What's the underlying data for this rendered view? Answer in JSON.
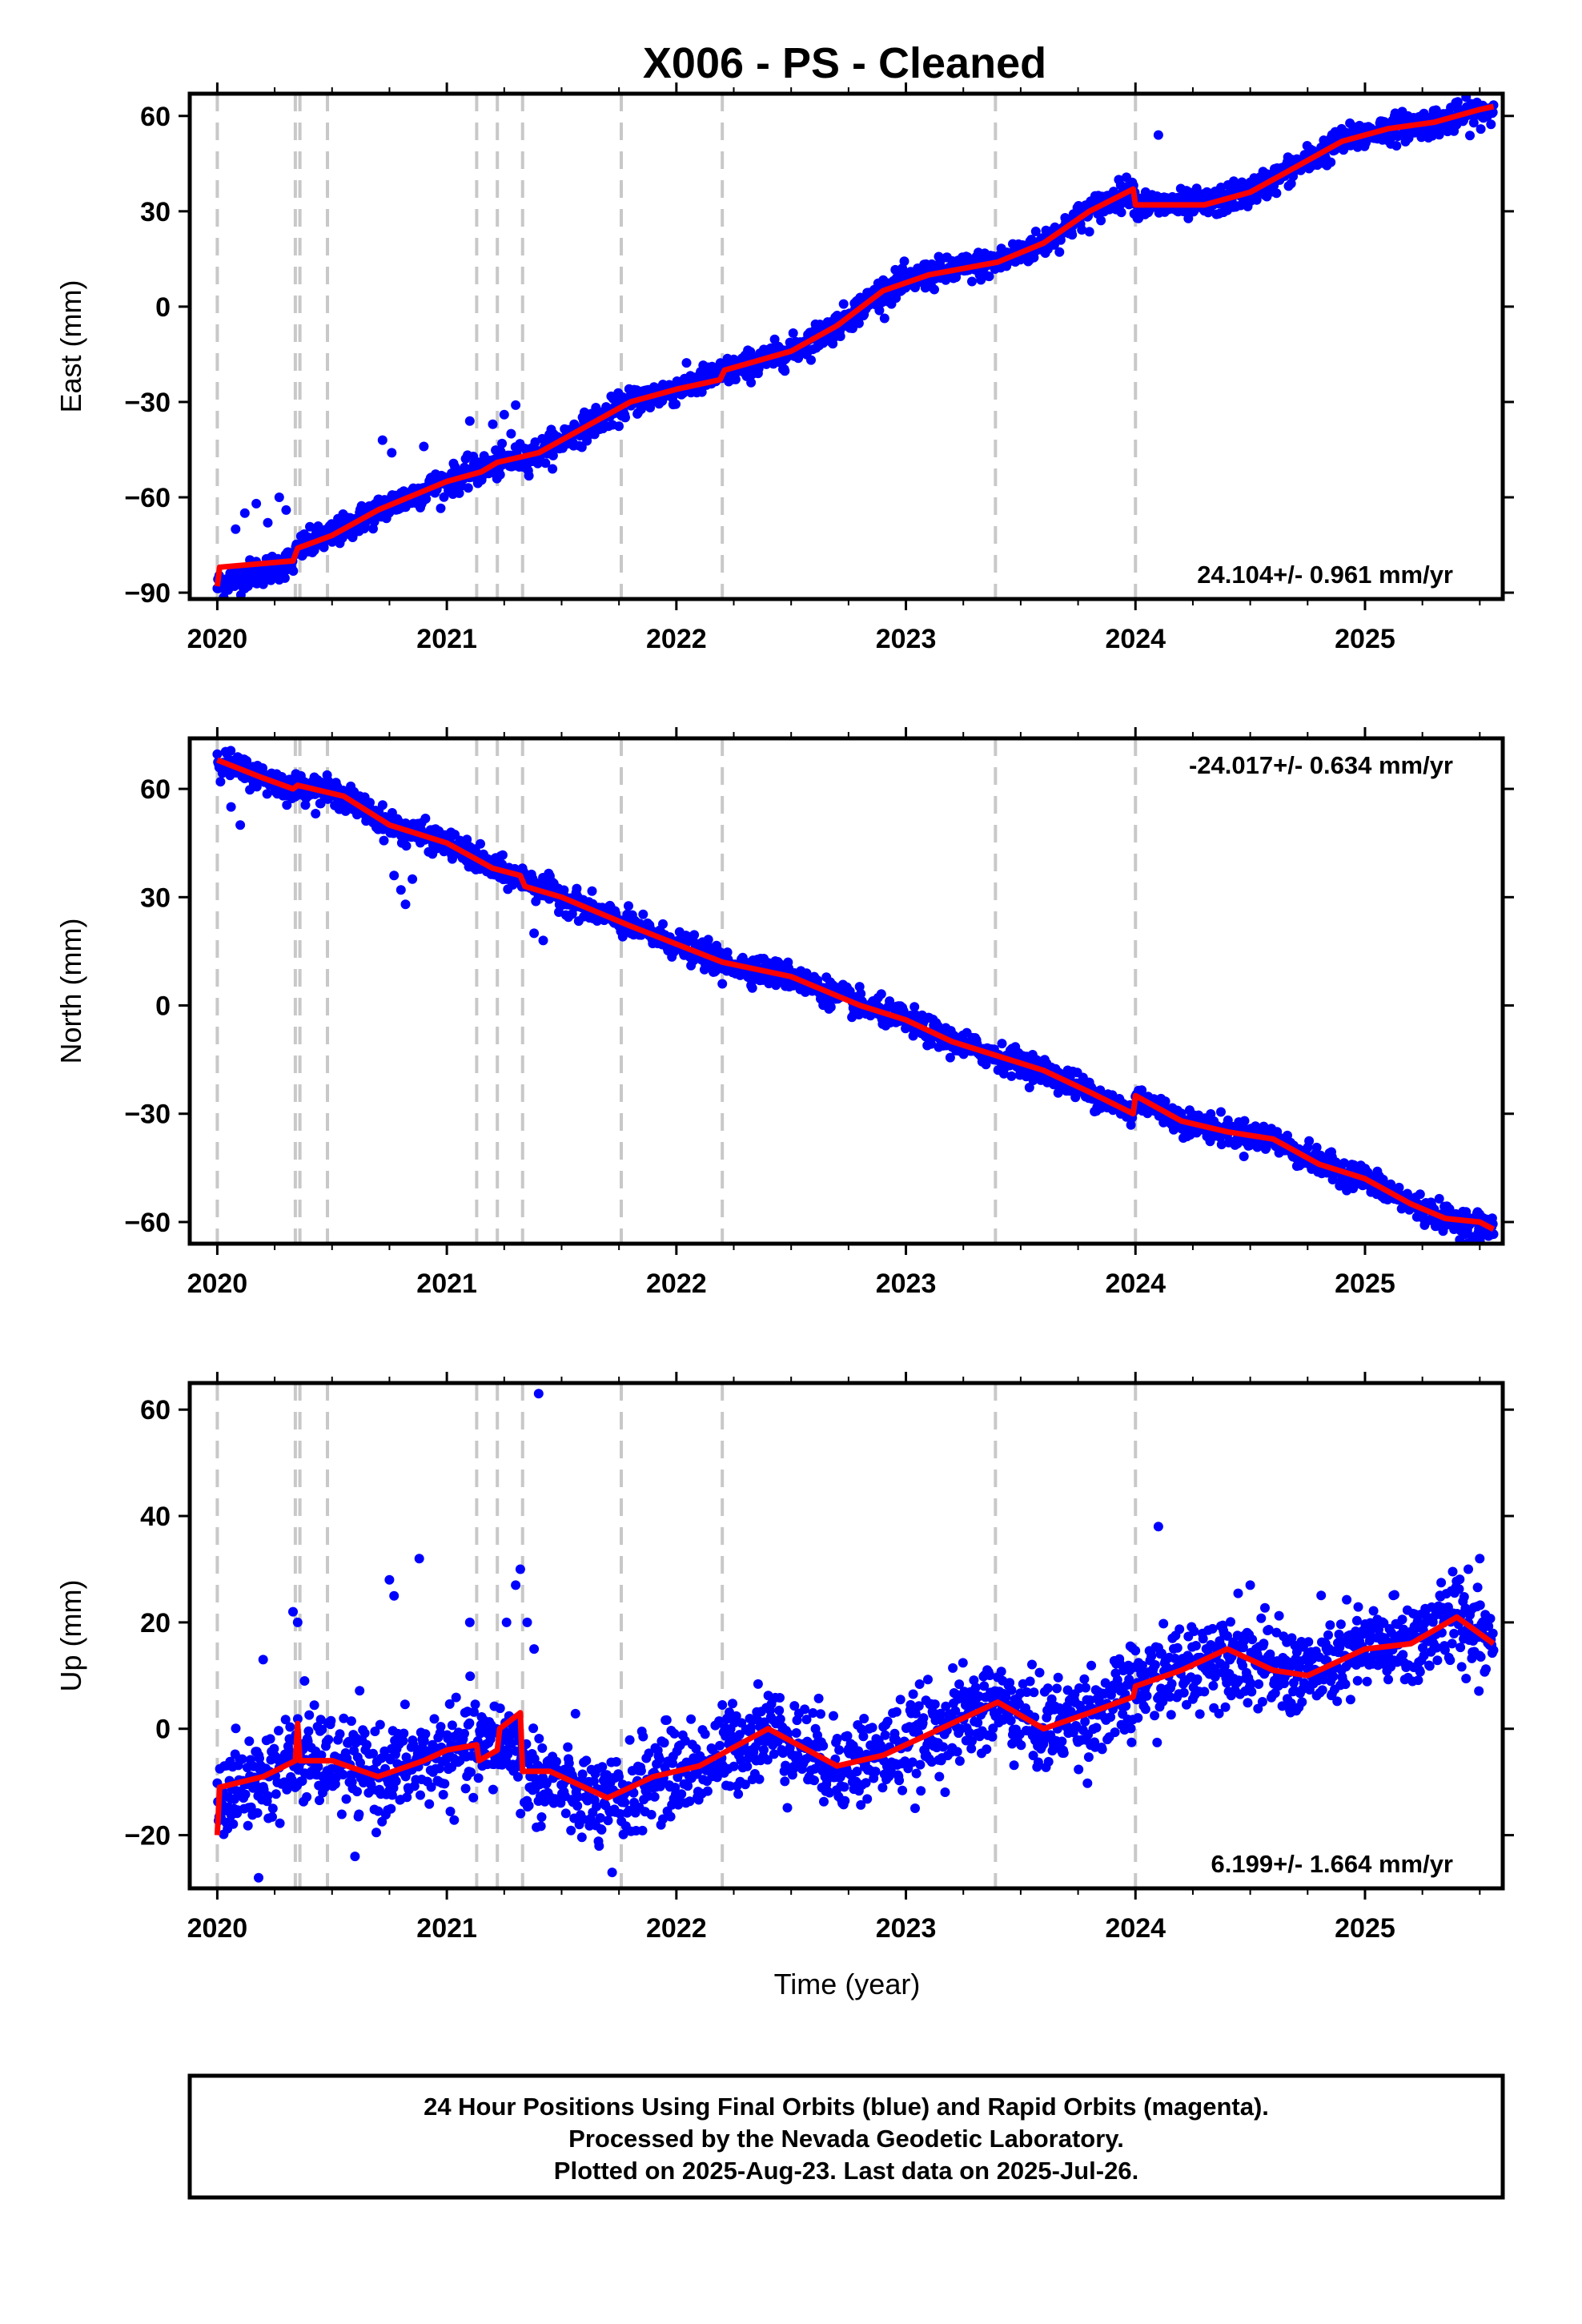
{
  "title": "X006  - PS - Cleaned",
  "xlabel": "Time (year)",
  "x_ticks": [
    "2020",
    "2021",
    "2022",
    "2023",
    "2024",
    "2025"
  ],
  "event_lines_year": [
    2020.0,
    2020.34,
    2020.36,
    2020.48,
    2021.13,
    2021.22,
    2021.33,
    2021.76,
    2022.2,
    2023.39,
    2024.0
  ],
  "colors": {
    "final_orbit_points": "#0000ff",
    "model_fit": "#ff0000",
    "event_lines": "#c8c8c8"
  },
  "chart_data": [
    {
      "type": "scatter",
      "name": "east",
      "ylabel": "East (mm)",
      "xlim": [
        2019.88,
        2025.6
      ],
      "ylim": [
        -92,
        67
      ],
      "y_ticks": [
        "60",
        "30",
        "0",
        "−30",
        "−60",
        "−90"
      ],
      "y_tick_values": [
        60,
        30,
        0,
        -30,
        -60,
        -90
      ],
      "rate_text": "24.104+/- 0.961 mm/yr",
      "rate_position": "bottom-right",
      "fit": [
        [
          2020.0,
          -88
        ],
        [
          2020.01,
          -82
        ],
        [
          2020.33,
          -80
        ],
        [
          2020.35,
          -76
        ],
        [
          2020.5,
          -72
        ],
        [
          2020.7,
          -64
        ],
        [
          2021.0,
          -55
        ],
        [
          2021.15,
          -52
        ],
        [
          2021.22,
          -49
        ],
        [
          2021.4,
          -46
        ],
        [
          2021.6,
          -38
        ],
        [
          2021.8,
          -30
        ],
        [
          2022.0,
          -26
        ],
        [
          2022.19,
          -23
        ],
        [
          2022.21,
          -20
        ],
        [
          2022.5,
          -14
        ],
        [
          2022.7,
          -6
        ],
        [
          2022.9,
          5
        ],
        [
          2023.1,
          10
        ],
        [
          2023.4,
          14
        ],
        [
          2023.6,
          20
        ],
        [
          2023.8,
          30
        ],
        [
          2023.99,
          37
        ],
        [
          2024.0,
          32
        ],
        [
          2024.3,
          32
        ],
        [
          2024.5,
          36
        ],
        [
          2024.7,
          44
        ],
        [
          2024.9,
          52
        ],
        [
          2025.1,
          56
        ],
        [
          2025.3,
          58
        ],
        [
          2025.5,
          62
        ],
        [
          2025.56,
          63
        ]
      ],
      "anchors": [
        [
          2020.0,
          -88
        ],
        [
          2020.05,
          -86
        ],
        [
          2020.15,
          -84
        ],
        [
          2020.25,
          -82
        ],
        [
          2020.33,
          -80
        ],
        [
          2020.36,
          -76
        ],
        [
          2020.5,
          -72
        ],
        [
          2020.7,
          -64
        ],
        [
          2021.0,
          -55
        ],
        [
          2021.2,
          -50
        ],
        [
          2021.4,
          -46
        ],
        [
          2021.6,
          -38
        ],
        [
          2021.8,
          -30
        ],
        [
          2022.0,
          -26
        ],
        [
          2022.2,
          -21
        ],
        [
          2022.5,
          -14
        ],
        [
          2022.7,
          -6
        ],
        [
          2022.9,
          5
        ],
        [
          2023.1,
          10
        ],
        [
          2023.4,
          14
        ],
        [
          2023.6,
          20
        ],
        [
          2023.8,
          30
        ],
        [
          2023.99,
          37
        ],
        [
          2024.0,
          32
        ],
        [
          2024.3,
          32
        ],
        [
          2024.5,
          36
        ],
        [
          2024.7,
          44
        ],
        [
          2024.9,
          52
        ],
        [
          2025.1,
          56
        ],
        [
          2025.3,
          58
        ],
        [
          2025.56,
          62
        ]
      ],
      "noise": 2.2,
      "point_count": 2000,
      "outliers": [
        [
          2020.08,
          -70
        ],
        [
          2020.12,
          -65
        ],
        [
          2020.17,
          -62
        ],
        [
          2020.22,
          -68
        ],
        [
          2020.27,
          -60
        ],
        [
          2020.3,
          -64
        ],
        [
          2020.72,
          -42
        ],
        [
          2020.76,
          -46
        ],
        [
          2020.9,
          -44
        ],
        [
          2021.1,
          -36
        ],
        [
          2021.2,
          -37
        ],
        [
          2021.25,
          -34
        ],
        [
          2021.3,
          -31
        ],
        [
          2021.28,
          -40
        ],
        [
          2024.1,
          54
        ]
      ]
    },
    {
      "type": "scatter",
      "name": "north",
      "ylabel": "North (mm)",
      "xlim": [
        2019.88,
        2025.6
      ],
      "ylim": [
        -66,
        74
      ],
      "y_ticks": [
        "60",
        "30",
        "0",
        "−30",
        "−60"
      ],
      "y_tick_values": [
        60,
        30,
        0,
        -30,
        -60
      ],
      "rate_text": "-24.017+/- 0.634 mm/yr",
      "rate_position": "top-right",
      "fit": [
        [
          2020.0,
          68
        ],
        [
          2020.2,
          63
        ],
        [
          2020.33,
          60
        ],
        [
          2020.35,
          61
        ],
        [
          2020.55,
          58
        ],
        [
          2020.75,
          50
        ],
        [
          2021.0,
          45
        ],
        [
          2021.2,
          38
        ],
        [
          2021.32,
          36
        ],
        [
          2021.34,
          33
        ],
        [
          2021.5,
          30
        ],
        [
          2021.8,
          22
        ],
        [
          2022.0,
          17
        ],
        [
          2022.2,
          12
        ],
        [
          2022.5,
          8
        ],
        [
          2022.8,
          0
        ],
        [
          2023.0,
          -4
        ],
        [
          2023.2,
          -10
        ],
        [
          2023.4,
          -14
        ],
        [
          2023.6,
          -18
        ],
        [
          2023.8,
          -24
        ],
        [
          2023.99,
          -30
        ],
        [
          2024.0,
          -25
        ],
        [
          2024.2,
          -32
        ],
        [
          2024.4,
          -35
        ],
        [
          2024.6,
          -37
        ],
        [
          2024.8,
          -44
        ],
        [
          2025.0,
          -48
        ],
        [
          2025.2,
          -55
        ],
        [
          2025.35,
          -59
        ],
        [
          2025.5,
          -60
        ],
        [
          2025.56,
          -62
        ]
      ],
      "anchors": [
        [
          2020.0,
          68
        ],
        [
          2020.2,
          63
        ],
        [
          2020.33,
          60
        ],
        [
          2020.36,
          61
        ],
        [
          2020.55,
          58
        ],
        [
          2020.75,
          50
        ],
        [
          2021.0,
          45
        ],
        [
          2021.2,
          38
        ],
        [
          2021.33,
          35
        ],
        [
          2021.5,
          30
        ],
        [
          2021.8,
          22
        ],
        [
          2022.0,
          17
        ],
        [
          2022.2,
          12
        ],
        [
          2022.5,
          8
        ],
        [
          2022.8,
          0
        ],
        [
          2023.0,
          -4
        ],
        [
          2023.2,
          -10
        ],
        [
          2023.4,
          -14
        ],
        [
          2023.6,
          -18
        ],
        [
          2023.8,
          -24
        ],
        [
          2023.99,
          -30
        ],
        [
          2024.0,
          -25
        ],
        [
          2024.2,
          -32
        ],
        [
          2024.4,
          -35
        ],
        [
          2024.6,
          -37
        ],
        [
          2024.8,
          -44
        ],
        [
          2025.0,
          -48
        ],
        [
          2025.2,
          -55
        ],
        [
          2025.35,
          -59
        ],
        [
          2025.56,
          -62
        ]
      ],
      "noise": 1.8,
      "point_count": 2000,
      "outliers": [
        [
          2020.06,
          55
        ],
        [
          2020.1,
          50
        ],
        [
          2020.77,
          36
        ],
        [
          2020.8,
          32
        ],
        [
          2020.82,
          28
        ],
        [
          2020.85,
          35
        ],
        [
          2021.38,
          20
        ],
        [
          2021.42,
          18
        ],
        [
          2022.2,
          6
        ]
      ]
    },
    {
      "type": "scatter",
      "name": "up",
      "ylabel": "Up (mm)",
      "xlim": [
        2019.88,
        2025.6
      ],
      "ylim": [
        -30,
        65
      ],
      "y_ticks": [
        "60",
        "40",
        "20",
        "0",
        "−20"
      ],
      "y_tick_values": [
        60,
        40,
        20,
        0,
        -20
      ],
      "rate_text": "6.199+/- 1.664 mm/yr",
      "rate_position": "bottom-right",
      "fit": [
        [
          2020.0,
          -20
        ],
        [
          2020.01,
          -11
        ],
        [
          2020.2,
          -9
        ],
        [
          2020.34,
          -6
        ],
        [
          2020.35,
          1
        ],
        [
          2020.36,
          -6
        ],
        [
          2020.5,
          -6
        ],
        [
          2020.7,
          -9
        ],
        [
          2020.9,
          -6
        ],
        [
          2021.0,
          -4
        ],
        [
          2021.13,
          -3
        ],
        [
          2021.14,
          -6
        ],
        [
          2021.22,
          -4
        ],
        [
          2021.23,
          0
        ],
        [
          2021.32,
          3
        ],
        [
          2021.33,
          -8
        ],
        [
          2021.45,
          -8
        ],
        [
          2021.7,
          -13
        ],
        [
          2021.9,
          -9
        ],
        [
          2022.1,
          -7
        ],
        [
          2022.4,
          0
        ],
        [
          2022.7,
          -7
        ],
        [
          2022.9,
          -5
        ],
        [
          2023.1,
          -1
        ],
        [
          2023.4,
          5
        ],
        [
          2023.6,
          0
        ],
        [
          2023.8,
          3
        ],
        [
          2023.99,
          6
        ],
        [
          2024.0,
          8
        ],
        [
          2024.2,
          11
        ],
        [
          2024.4,
          15
        ],
        [
          2024.6,
          11
        ],
        [
          2024.75,
          10
        ],
        [
          2025.0,
          15
        ],
        [
          2025.2,
          16
        ],
        [
          2025.4,
          21
        ],
        [
          2025.56,
          16
        ]
      ],
      "anchors": [
        [
          2020.0,
          -13
        ],
        [
          2020.2,
          -9
        ],
        [
          2020.34,
          -6
        ],
        [
          2020.5,
          -6
        ],
        [
          2020.7,
          -9
        ],
        [
          2020.9,
          -6
        ],
        [
          2021.1,
          -4
        ],
        [
          2021.3,
          -2
        ],
        [
          2021.33,
          -8
        ],
        [
          2021.45,
          -10
        ],
        [
          2021.7,
          -15
        ],
        [
          2021.9,
          -9
        ],
        [
          2022.1,
          -7
        ],
        [
          2022.4,
          0
        ],
        [
          2022.7,
          -7
        ],
        [
          2022.9,
          -5
        ],
        [
          2023.1,
          -1
        ],
        [
          2023.4,
          5
        ],
        [
          2023.6,
          0
        ],
        [
          2023.8,
          3
        ],
        [
          2023.99,
          6
        ],
        [
          2024.0,
          8
        ],
        [
          2024.2,
          11
        ],
        [
          2024.4,
          15
        ],
        [
          2024.6,
          11
        ],
        [
          2024.75,
          10
        ],
        [
          2025.0,
          15
        ],
        [
          2025.2,
          16
        ],
        [
          2025.4,
          21
        ],
        [
          2025.56,
          17
        ]
      ],
      "noise": 4.2,
      "point_count": 2000,
      "outliers": [
        [
          2020.33,
          22
        ],
        [
          2020.35,
          20
        ],
        [
          2020.2,
          13
        ],
        [
          2020.38,
          9
        ],
        [
          2020.75,
          28
        ],
        [
          2020.77,
          25
        ],
        [
          2020.88,
          32
        ],
        [
          2021.1,
          20
        ],
        [
          2021.26,
          20
        ],
        [
          2021.3,
          27
        ],
        [
          2021.32,
          30
        ],
        [
          2021.35,
          20
        ],
        [
          2021.38,
          15
        ],
        [
          2021.4,
          63
        ],
        [
          2024.1,
          38
        ],
        [
          2020.18,
          -28
        ],
        [
          2020.6,
          -24
        ],
        [
          2021.72,
          -27
        ],
        [
          2024.5,
          27
        ],
        [
          2025.5,
          32
        ],
        [
          2025.45,
          30
        ]
      ]
    }
  ],
  "footer": {
    "line1": "24 Hour Positions Using Final Orbits (blue) and Rapid Orbits (magenta).",
    "line2": "Processed by the Nevada Geodetic Laboratory.",
    "line3": "Plotted on 2025-Aug-23. Last data on 2025-Jul-26."
  }
}
